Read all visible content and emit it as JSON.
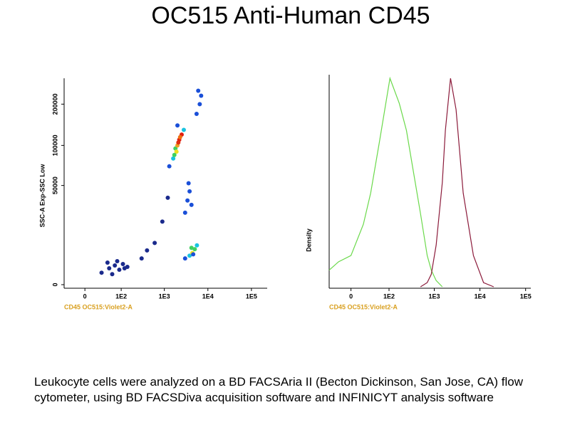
{
  "title": "OC515  Anti-Human CD45",
  "caption": "Leukocyte cells were analyzed on a BD FACSAria II (Becton Dickinson, San Jose, CA) flow cytometer, using  BD FACSDiva acquisition software and INFINICYT analysis software",
  "chart_data": [
    {
      "type": "scatter",
      "xlabel": "CD45 OC515:Violet2-A",
      "ylabel": "SSC-A Exp-SSC Low",
      "xscale": "asinh",
      "yscale": "asinh",
      "xlim": [
        -40,
        230000
      ],
      "ylim": [
        0,
        290000
      ],
      "xticks": [
        0,
        {
          "value": 100,
          "label": "1E2"
        },
        {
          "value": 1000,
          "label": "1E3"
        },
        {
          "value": 10000,
          "label": "1E4"
        },
        {
          "value": 100000,
          "label": "1E5"
        }
      ],
      "yticks": [
        0,
        50000,
        100000,
        200000
      ],
      "x": [
        30,
        50,
        70,
        90,
        110,
        140,
        60,
        80,
        120,
        45,
        3000,
        3800,
        4400,
        5000,
        5600,
        4200,
        4600,
        3000,
        3400,
        3800,
        4200,
        3600,
        1300,
        1600,
        1800,
        2000,
        2200,
        2500,
        2800,
        1900,
        2100,
        2300,
        1700,
        2000,
        5500,
        6500,
        7000,
        6000,
        300,
        600,
        900,
        1200,
        400
      ],
      "y": [
        4000,
        5500,
        6500,
        5000,
        7000,
        6000,
        3500,
        8000,
        5500,
        7500,
        9000,
        10000,
        11000,
        12500,
        14000,
        13000,
        10500,
        30000,
        38000,
        45000,
        35000,
        52000,
        70000,
        80000,
        95000,
        100000,
        110000,
        120000,
        130000,
        90000,
        105000,
        115000,
        85000,
        140000,
        170000,
        200000,
        230000,
        250000,
        9000,
        15000,
        25000,
        40000,
        12000
      ],
      "colors": [
        "#1a2a8c",
        "#1a2a8c",
        "#1a2a8c",
        "#1a2a8c",
        "#1a2a8c",
        "#1a2a8c",
        "#1a2a8c",
        "#1a2a8c",
        "#1a2a8c",
        "#1a2a8c",
        "#1a4fd8",
        "#19c3e0",
        "#f0e020",
        "#40d060",
        "#19c3e0",
        "#40d060",
        "#1a4fd8",
        "#1a4fd8",
        "#1a4fd8",
        "#1a4fd8",
        "#1a4fd8",
        "#1a4fd8",
        "#1a4fd8",
        "#19c3e0",
        "#40d060",
        "#f0a020",
        "#e02010",
        "#e02010",
        "#19c3e0",
        "#f0e020",
        "#e03010",
        "#f07010",
        "#40d060",
        "#1a4fd8",
        "#1a4fd8",
        "#1a4fd8",
        "#1a4fd8",
        "#1a4fd8",
        "#1a2a8c",
        "#1a2a8c",
        "#1a2a8c",
        "#1a2a8c",
        "#1a2a8c"
      ]
    },
    {
      "type": "line",
      "xlabel": "CD45 OC515:Violet2-A",
      "ylabel": "Density",
      "xscale": "asinh",
      "xlim": [
        -40,
        130000
      ],
      "ylim": [
        0,
        100
      ],
      "xticks": [
        0,
        {
          "value": 100,
          "label": "1E2"
        },
        {
          "value": 1000,
          "label": "1E3"
        },
        {
          "value": 10000,
          "label": "1E4"
        },
        {
          "value": 100000,
          "label": "1E5"
        }
      ],
      "x": [
        -40,
        -20,
        0,
        20,
        35,
        60,
        105,
        170,
        245,
        350,
        500,
        700,
        860,
        1100,
        1500,
        1750,
        2270,
        3000,
        4300,
        7200,
        12000,
        20000
      ],
      "series": [
        {
          "color": "#6ad94a",
          "values": [
            8,
            12,
            15,
            30,
            45,
            70,
            100,
            88,
            75,
            55,
            35,
            15,
            8,
            3,
            0,
            null,
            null,
            null,
            null,
            null,
            null,
            null
          ]
        },
        {
          "color": "#8b1a3a",
          "values": [
            null,
            null,
            null,
            null,
            null,
            null,
            null,
            null,
            null,
            null,
            0,
            2,
            6,
            20,
            50,
            75,
            100,
            85,
            45,
            15,
            2,
            0
          ]
        }
      ]
    }
  ]
}
